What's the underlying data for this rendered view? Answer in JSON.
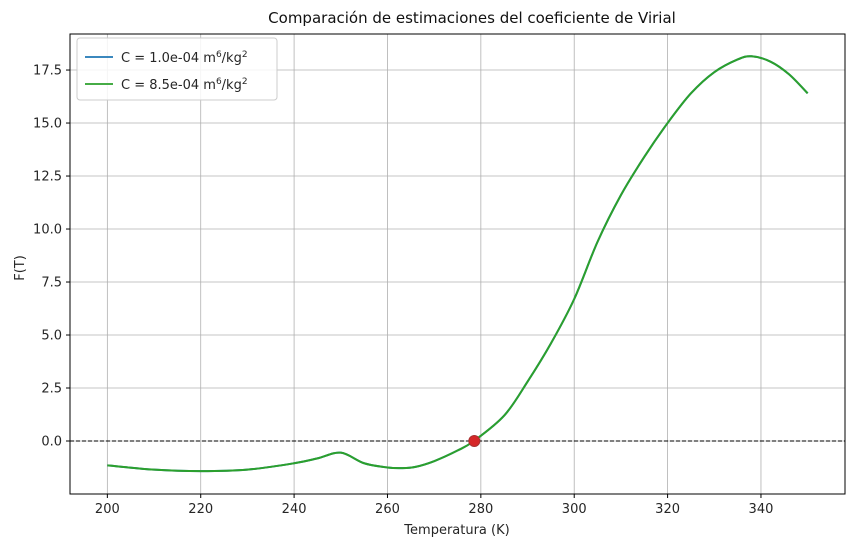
{
  "chart_data": {
    "type": "line",
    "title": "Comparación de estimaciones del coeficiente de Virial",
    "xlabel": "Temperatura (K)",
    "ylabel": "F(T)",
    "xlim": [
      192,
      358
    ],
    "ylim": [
      -2.5,
      19.2
    ],
    "xticks": [
      200,
      220,
      240,
      260,
      280,
      300,
      320,
      340
    ],
    "yticks": [
      0.0,
      2.5,
      5.0,
      7.5,
      10.0,
      12.5,
      15.0,
      17.5
    ],
    "xtick_labels": [
      "200",
      "220",
      "240",
      "260",
      "280",
      "300",
      "320",
      "340"
    ],
    "ytick_labels": [
      "0.0",
      "2.5",
      "5.0",
      "7.5",
      "10.0",
      "12.5",
      "15.0",
      "17.5"
    ],
    "grid": true,
    "legend_position": "top-left",
    "reference_line": {
      "y": 0,
      "style": "dashed",
      "color": "#000000"
    },
    "series": [
      {
        "name": "C = 1.0e-04 m⁶/kg²",
        "legend_base": "C = 1.0e-04 m",
        "legend_sup1": "6",
        "legend_mid": "/kg",
        "legend_sup2": "2",
        "color": "#1f77b4",
        "x": [
          200,
          210,
          220,
          230,
          240,
          245,
          250,
          255,
          260,
          263,
          266,
          270,
          275,
          278.5,
          285,
          290,
          295,
          300,
          305,
          310,
          315,
          320,
          325,
          330,
          335,
          338,
          342,
          346,
          350
        ],
        "y": [
          -1.15,
          -1.35,
          -1.42,
          -1.35,
          -1.05,
          -0.82,
          -0.55,
          -1.05,
          -1.25,
          -1.28,
          -1.22,
          -0.95,
          -0.45,
          0.0,
          1.2,
          2.8,
          4.6,
          6.7,
          9.4,
          11.6,
          13.4,
          15.0,
          16.4,
          17.4,
          18.0,
          18.15,
          17.9,
          17.3,
          16.4
        ]
      },
      {
        "name": "C = 8.5e-04 m⁶/kg²",
        "legend_base": "C = 8.5e-04 m",
        "legend_sup1": "6",
        "legend_mid": "/kg",
        "legend_sup2": "2",
        "color": "#2ca02c",
        "x": [
          200,
          210,
          220,
          230,
          240,
          245,
          250,
          255,
          260,
          263,
          266,
          270,
          275,
          278.5,
          285,
          290,
          295,
          300,
          305,
          310,
          315,
          320,
          325,
          330,
          335,
          338,
          342,
          346,
          350
        ],
        "y": [
          -1.15,
          -1.35,
          -1.42,
          -1.35,
          -1.05,
          -0.82,
          -0.55,
          -1.05,
          -1.25,
          -1.28,
          -1.22,
          -0.95,
          -0.45,
          0.0,
          1.2,
          2.8,
          4.6,
          6.7,
          9.4,
          11.6,
          13.4,
          15.0,
          16.4,
          17.4,
          18.0,
          18.15,
          17.9,
          17.3,
          16.4
        ]
      }
    ],
    "markers": [
      {
        "x": 278.6,
        "y": 0.0,
        "color": "#d62728",
        "edge_color": "#a83232"
      }
    ]
  }
}
